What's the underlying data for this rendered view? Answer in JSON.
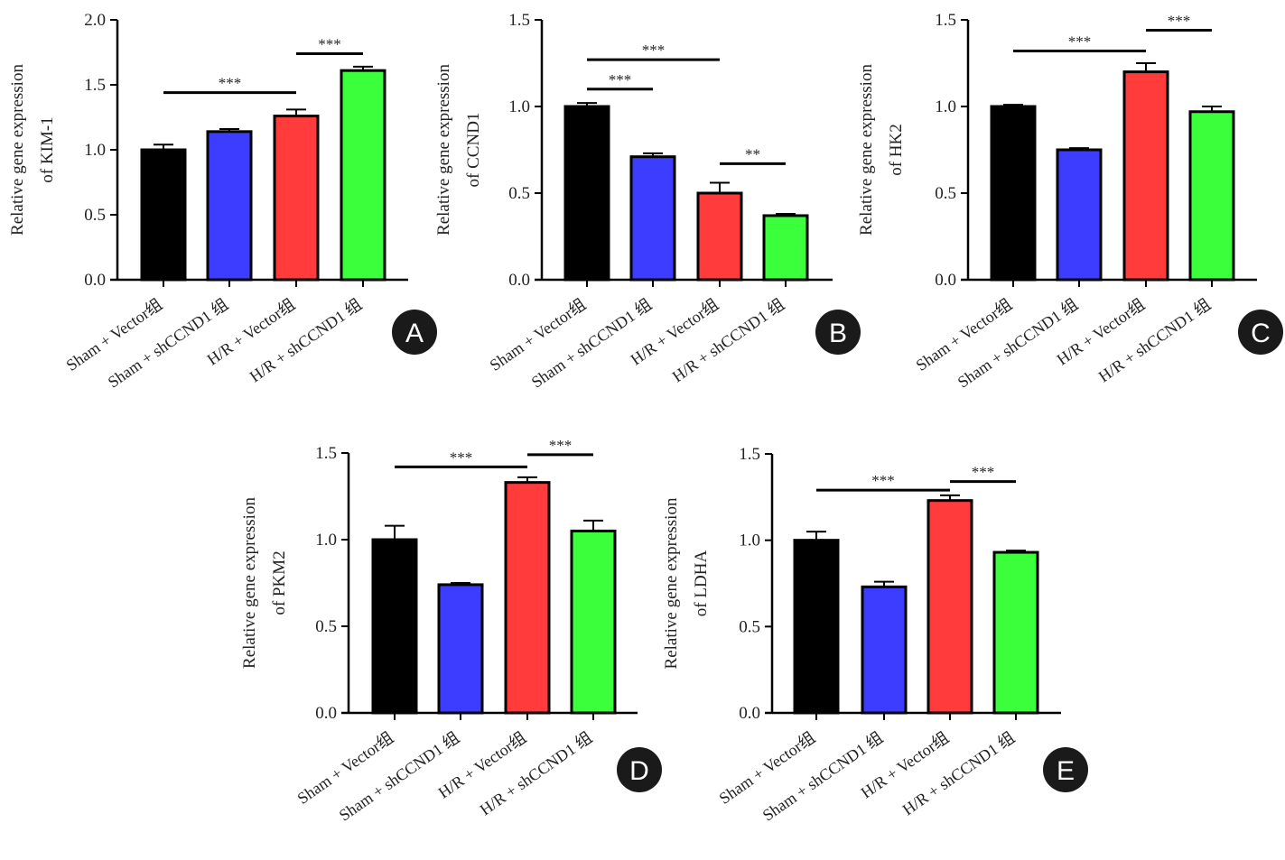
{
  "chart_data": [
    {
      "panel": "A",
      "type": "bar",
      "ylabel": [
        "Relative gene expression",
        "of KIM-1"
      ],
      "ylim": [
        0,
        2.0
      ],
      "yticks": [
        "0.0",
        "0.5",
        "1.0",
        "1.5",
        "2.0"
      ],
      "categories": [
        "Sham + Vector组",
        "Sham + shCCND1 组",
        "H/R + Vector组",
        "H/R + shCCND1 组"
      ],
      "values": [
        1.0,
        1.14,
        1.26,
        1.61
      ],
      "errors": [
        0.04,
        0.02,
        0.05,
        0.03
      ],
      "annotations": [
        {
          "from": 0,
          "to": 2,
          "level": 1.44,
          "label": "***"
        },
        {
          "from": 2,
          "to": 3,
          "level": 1.74,
          "label": "***"
        }
      ]
    },
    {
      "panel": "B",
      "type": "bar",
      "ylabel": [
        "Relative gene expression",
        "of CCND1"
      ],
      "ylim": [
        0,
        1.5
      ],
      "yticks": [
        "0.0",
        "0.5",
        "1.0",
        "1.5"
      ],
      "categories": [
        "Sham + Vector组",
        "Sham + shCCND1 组",
        "H/R + Vector组",
        "H/R + shCCND1 组"
      ],
      "values": [
        1.0,
        0.71,
        0.5,
        0.37
      ],
      "errors": [
        0.02,
        0.02,
        0.06,
        0.01
      ],
      "annotations": [
        {
          "from": 0,
          "to": 2,
          "level": 1.27,
          "label": "***"
        },
        {
          "from": 0,
          "to": 1,
          "level": 1.1,
          "label": "***"
        },
        {
          "from": 2,
          "to": 3,
          "level": 0.67,
          "label": "**"
        }
      ]
    },
    {
      "panel": "C",
      "type": "bar",
      "ylabel": [
        "Relative gene expression",
        "of HK2"
      ],
      "ylim": [
        0,
        1.5
      ],
      "yticks": [
        "0.0",
        "0.5",
        "1.0",
        "1.5"
      ],
      "categories": [
        "Sham + Vector组",
        "Sham + shCCND1 组",
        "H/R + Vector组",
        "H/R + shCCND1 组"
      ],
      "values": [
        1.0,
        0.75,
        1.2,
        0.97
      ],
      "errors": [
        0.01,
        0.01,
        0.05,
        0.03
      ],
      "annotations": [
        {
          "from": 0,
          "to": 2,
          "level": 1.32,
          "label": "***"
        },
        {
          "from": 2,
          "to": 3,
          "level": 1.44,
          "label": "***"
        }
      ]
    },
    {
      "panel": "D",
      "type": "bar",
      "ylabel": [
        "Relative gene expression",
        "of PKM2"
      ],
      "ylim": [
        0,
        1.5
      ],
      "yticks": [
        "0.0",
        "0.5",
        "1.0",
        "1.5"
      ],
      "categories": [
        "Sham + Vector组",
        "Sham + shCCND1 组",
        "H/R + Vector组",
        "H/R + shCCND1 组"
      ],
      "values": [
        1.0,
        0.74,
        1.33,
        1.05
      ],
      "errors": [
        0.08,
        0.01,
        0.03,
        0.06
      ],
      "annotations": [
        {
          "from": 0,
          "to": 2,
          "level": 1.42,
          "label": "***"
        },
        {
          "from": 2,
          "to": 3,
          "level": 1.49,
          "label": "***"
        }
      ]
    },
    {
      "panel": "E",
      "type": "bar",
      "ylabel": [
        "Relative gene expression",
        "of LDHA"
      ],
      "ylim": [
        0,
        1.5
      ],
      "yticks": [
        "0.0",
        "0.5",
        "1.0",
        "1.5"
      ],
      "categories": [
        "Sham + Vector组",
        "Sham + shCCND1 组",
        "H/R + Vector组",
        "H/R + shCCND1 组"
      ],
      "values": [
        1.0,
        0.73,
        1.23,
        0.93
      ],
      "errors": [
        0.05,
        0.03,
        0.03,
        0.01
      ],
      "annotations": [
        {
          "from": 0,
          "to": 2,
          "level": 1.29,
          "label": "***"
        },
        {
          "from": 2,
          "to": 3,
          "level": 1.34,
          "label": "***"
        }
      ]
    }
  ],
  "colors": [
    "#000000",
    "#3d3dff",
    "#ff3b3b",
    "#3cff3c"
  ]
}
